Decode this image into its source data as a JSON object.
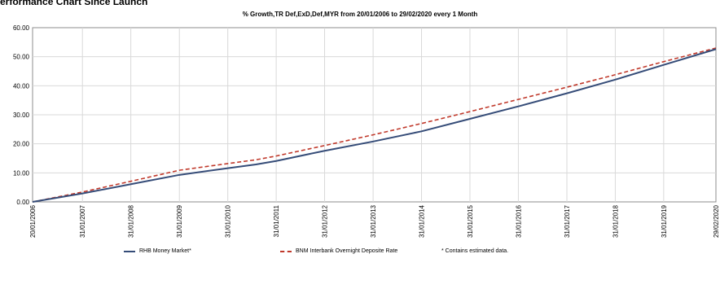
{
  "header": {
    "title": "erformance Chart Since Launch"
  },
  "chart_data": {
    "type": "line",
    "title": "% Growth,TR Def,ExD,Def,MYR from 20/01/2006 to 29/02/2020 every 1 Month",
    "xlabel": "",
    "ylabel": "",
    "ylim": [
      0,
      60
    ],
    "yticks": [
      "0.00",
      "10.00",
      "20.00",
      "30.00",
      "40.00",
      "50.00",
      "60.00"
    ],
    "xticks": [
      "20/01/2006",
      "31/01/2007",
      "31/01/2008",
      "31/01/2009",
      "31/01/2010",
      "31/01/2011",
      "31/01/2012",
      "31/01/2013",
      "31/01/2014",
      "31/01/2015",
      "31/01/2016",
      "31/01/2017",
      "31/01/2018",
      "31/01/2019",
      "29/02/2020"
    ],
    "grid": true,
    "legend_placement": "bottom",
    "x": [
      "20/01/2006",
      "31/01/2007",
      "31/01/2008",
      "31/01/2009",
      "31/01/2010",
      "31/08/2010",
      "31/01/2011",
      "31/01/2012",
      "31/01/2013",
      "31/01/2014",
      "31/01/2015",
      "31/01/2016",
      "31/01/2017",
      "31/01/2018",
      "31/01/2019",
      "29/02/2020"
    ],
    "series": [
      {
        "name": "RHB Money Market*",
        "color": "#354c78",
        "style": "solid",
        "values": [
          0.0,
          2.9,
          6.1,
          9.3,
          11.6,
          12.9,
          14.1,
          17.6,
          20.8,
          24.3,
          28.6,
          32.9,
          37.4,
          42.1,
          47.2,
          52.6
        ]
      },
      {
        "name": "BNM Interbank Overnight Deposite Rate",
        "color": "#c0392b",
        "style": "dashed",
        "values": [
          0.0,
          3.4,
          7.1,
          10.9,
          13.2,
          14.5,
          15.8,
          19.4,
          23.1,
          27.0,
          31.1,
          35.3,
          39.5,
          43.8,
          48.3,
          53.0
        ]
      }
    ],
    "note": "* Contains estimated data."
  },
  "legend": {
    "series_1_label": "RHB Money Market*",
    "series_2_label": "BNM Interbank Overnight Deposite Rate",
    "note": "* Contains estimated data."
  }
}
